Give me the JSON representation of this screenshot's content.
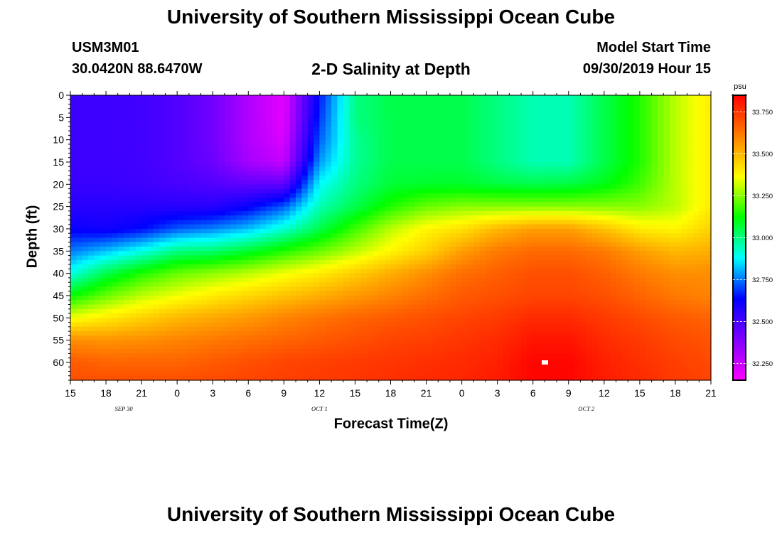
{
  "header": {
    "title": "University of Southern Mississippi Ocean Cube",
    "station": "USM3M01",
    "coords": "30.0420N 88.6470W",
    "subtitle": "2-D Salinity at Depth",
    "start_label": "Model Start Time",
    "start_time": "09/30/2019 Hour 15"
  },
  "footer": {
    "title": "University of Southern Mississippi Ocean Cube"
  },
  "chart_data": {
    "type": "heatmap",
    "xlabel": "Forecast Time(Z)",
    "ylabel": "Depth (ft)",
    "x_tick_labels": [
      "15",
      "18",
      "21",
      "0",
      "3",
      "6",
      "9",
      "12",
      "15",
      "18",
      "21",
      "0",
      "3",
      "6",
      "9",
      "12",
      "15",
      "18",
      "21"
    ],
    "x_range_hours": [
      0,
      54
    ],
    "day_labels": [
      {
        "text": "SEP 30",
        "hour": 4.5
      },
      {
        "text": "OCT 1",
        "hour": 21
      },
      {
        "text": "OCT 2",
        "hour": 43.5
      }
    ],
    "y_tick_labels": [
      "0",
      "5",
      "10",
      "15",
      "20",
      "25",
      "30",
      "35",
      "40",
      "45",
      "50",
      "55",
      "60"
    ],
    "y_range": [
      0,
      64
    ],
    "y_inverted": true,
    "colorbar": {
      "unit": "psu",
      "min": 32.15,
      "max": 33.85,
      "tick_labels": [
        "33.750",
        "33.500",
        "33.250",
        "33.000",
        "32.750",
        "32.500",
        "32.250"
      ],
      "tick_values": [
        33.75,
        33.5,
        33.25,
        33.0,
        32.75,
        32.5,
        32.25
      ],
      "colors": [
        "#ff00ff",
        "#7f00ff",
        "#0000ff",
        "#00ffff",
        "#00ff00",
        "#ffff00",
        "#ff8000",
        "#ff0000"
      ]
    },
    "depths": [
      0,
      5,
      10,
      15,
      20,
      25,
      30,
      35,
      40,
      45,
      50,
      55,
      60,
      64
    ],
    "hours": [
      0,
      3,
      6,
      9,
      12,
      15,
      18,
      21,
      24,
      27,
      30,
      33,
      36,
      39,
      42,
      45,
      48,
      51,
      54
    ],
    "salinity": [
      [
        32.52,
        32.52,
        32.51,
        32.48,
        32.42,
        32.3,
        32.2,
        32.65,
        33.0,
        33.05,
        33.05,
        33.05,
        33.0,
        32.95,
        32.95,
        33.05,
        33.15,
        33.3,
        33.4
      ],
      [
        32.52,
        32.52,
        32.51,
        32.48,
        32.42,
        32.3,
        32.2,
        32.68,
        33.0,
        33.05,
        33.05,
        33.05,
        33.0,
        32.95,
        32.95,
        33.05,
        33.15,
        33.3,
        33.4
      ],
      [
        32.52,
        32.52,
        32.51,
        32.48,
        32.42,
        32.3,
        32.22,
        32.72,
        32.98,
        33.05,
        33.05,
        33.05,
        33.0,
        32.95,
        32.95,
        33.05,
        33.15,
        33.3,
        33.4
      ],
      [
        32.52,
        32.52,
        32.51,
        32.48,
        32.43,
        32.32,
        32.26,
        32.78,
        32.98,
        33.05,
        33.05,
        33.05,
        33.0,
        32.95,
        32.95,
        33.05,
        33.15,
        33.3,
        33.4
      ],
      [
        32.53,
        32.53,
        32.52,
        32.5,
        32.48,
        32.45,
        32.45,
        32.88,
        33.0,
        33.07,
        33.08,
        33.08,
        33.06,
        33.05,
        33.06,
        33.1,
        33.18,
        33.3,
        33.4
      ],
      [
        32.56,
        32.56,
        32.56,
        32.56,
        32.56,
        32.62,
        32.72,
        32.95,
        33.05,
        33.15,
        33.22,
        33.25,
        33.25,
        33.25,
        33.25,
        33.25,
        33.25,
        33.3,
        33.4
      ],
      [
        32.62,
        32.6,
        32.64,
        32.72,
        32.76,
        32.82,
        32.92,
        33.05,
        33.18,
        33.3,
        33.38,
        33.42,
        33.5,
        33.55,
        33.55,
        33.48,
        33.4,
        33.38,
        33.45
      ],
      [
        32.75,
        32.82,
        32.9,
        33.0,
        33.02,
        33.08,
        33.15,
        33.22,
        33.3,
        33.38,
        33.45,
        33.55,
        33.62,
        33.65,
        33.65,
        33.62,
        33.55,
        33.5,
        33.52
      ],
      [
        32.9,
        33.05,
        33.15,
        33.22,
        33.26,
        33.3,
        33.35,
        33.4,
        33.46,
        33.52,
        33.58,
        33.64,
        33.67,
        33.7,
        33.7,
        33.67,
        33.62,
        33.58,
        33.58
      ],
      [
        33.12,
        33.22,
        33.3,
        33.35,
        33.4,
        33.44,
        33.48,
        33.52,
        33.56,
        33.6,
        33.64,
        33.68,
        33.7,
        33.72,
        33.72,
        33.7,
        33.66,
        33.62,
        33.6
      ],
      [
        33.35,
        33.4,
        33.45,
        33.5,
        33.53,
        33.56,
        33.6,
        33.63,
        33.66,
        33.68,
        33.7,
        33.72,
        33.74,
        33.77,
        33.77,
        33.74,
        33.71,
        33.68,
        33.66
      ],
      [
        33.58,
        33.57,
        33.58,
        33.6,
        33.62,
        33.64,
        33.66,
        33.68,
        33.7,
        33.72,
        33.73,
        33.75,
        33.77,
        33.81,
        33.81,
        33.77,
        33.74,
        33.71,
        33.69
      ],
      [
        33.68,
        33.66,
        33.66,
        33.66,
        33.68,
        33.7,
        33.72,
        33.73,
        33.74,
        33.75,
        33.76,
        33.77,
        33.79,
        33.84,
        33.84,
        33.79,
        33.76,
        33.73,
        33.71
      ],
      [
        33.7,
        33.7,
        33.7,
        33.7,
        33.71,
        33.72,
        33.73,
        33.74,
        33.75,
        33.76,
        33.77,
        33.78,
        33.8,
        33.84,
        33.84,
        33.8,
        33.77,
        33.74,
        33.72
      ]
    ]
  }
}
